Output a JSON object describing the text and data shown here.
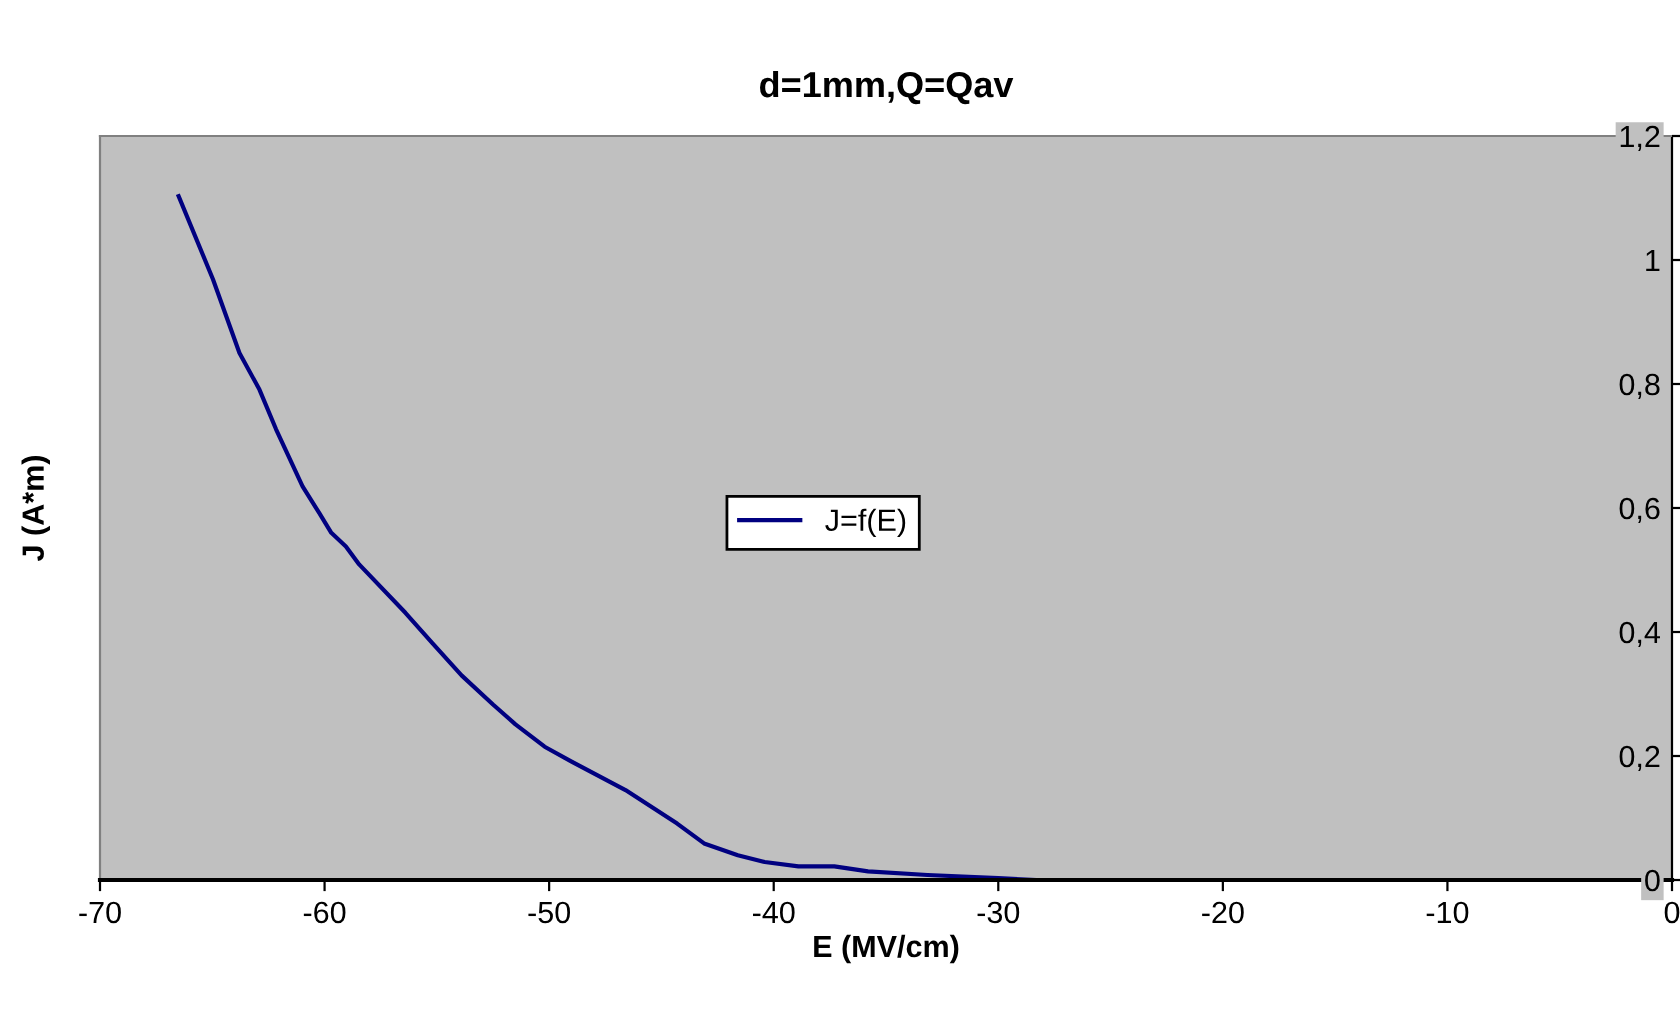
{
  "chart_data": {
    "type": "line",
    "title": "d=1mm,Q=Qav",
    "xlabel": "E (MV/cm)",
    "ylabel": "J (A*m)",
    "series": [
      {
        "name": "J=f(E)",
        "color": "#000080",
        "x": [
          -66.5,
          -64.97,
          -63.79,
          -62.9,
          -62.16,
          -60.98,
          -60.24,
          -59.7,
          -59.05,
          -58.46,
          -56.4,
          -55.2,
          -53.9,
          -52.5,
          -51.5,
          -50.2,
          -49.0,
          -46.6,
          -44.3,
          -43.1,
          -41.6,
          -40.4,
          -38.9,
          -37.3,
          -35.8,
          -33.15,
          -30.0,
          -28.3,
          -25.95
        ],
        "values": [
          1.103,
          0.969,
          0.85,
          0.791,
          0.727,
          0.635,
          0.592,
          0.56,
          0.538,
          0.509,
          0.431,
          0.382,
          0.33,
          0.283,
          0.251,
          0.215,
          0.191,
          0.145,
          0.091,
          0.059,
          0.04,
          0.029,
          0.022,
          0.022,
          0.014,
          0.008,
          0.003,
          0.0,
          0.0
        ]
      }
    ],
    "xlim": [
      -70,
      0
    ],
    "xticks": [
      -70,
      -60,
      -50,
      -40,
      -30,
      -20,
      -10,
      0
    ],
    "ylim": [
      0,
      1.2
    ],
    "yticks": [
      {
        "value": 0,
        "label": "0"
      },
      {
        "value": 0.2,
        "label": "0,2"
      },
      {
        "value": 0.4,
        "label": "0,4"
      },
      {
        "value": 0.6,
        "label": "0,6"
      },
      {
        "value": 0.8,
        "label": "0,8"
      },
      {
        "value": 1,
        "label": "1"
      },
      {
        "value": 1.2,
        "label": "1,2"
      }
    ],
    "grid": false,
    "legend": "center",
    "marker": "none",
    "line_style": "solid"
  }
}
